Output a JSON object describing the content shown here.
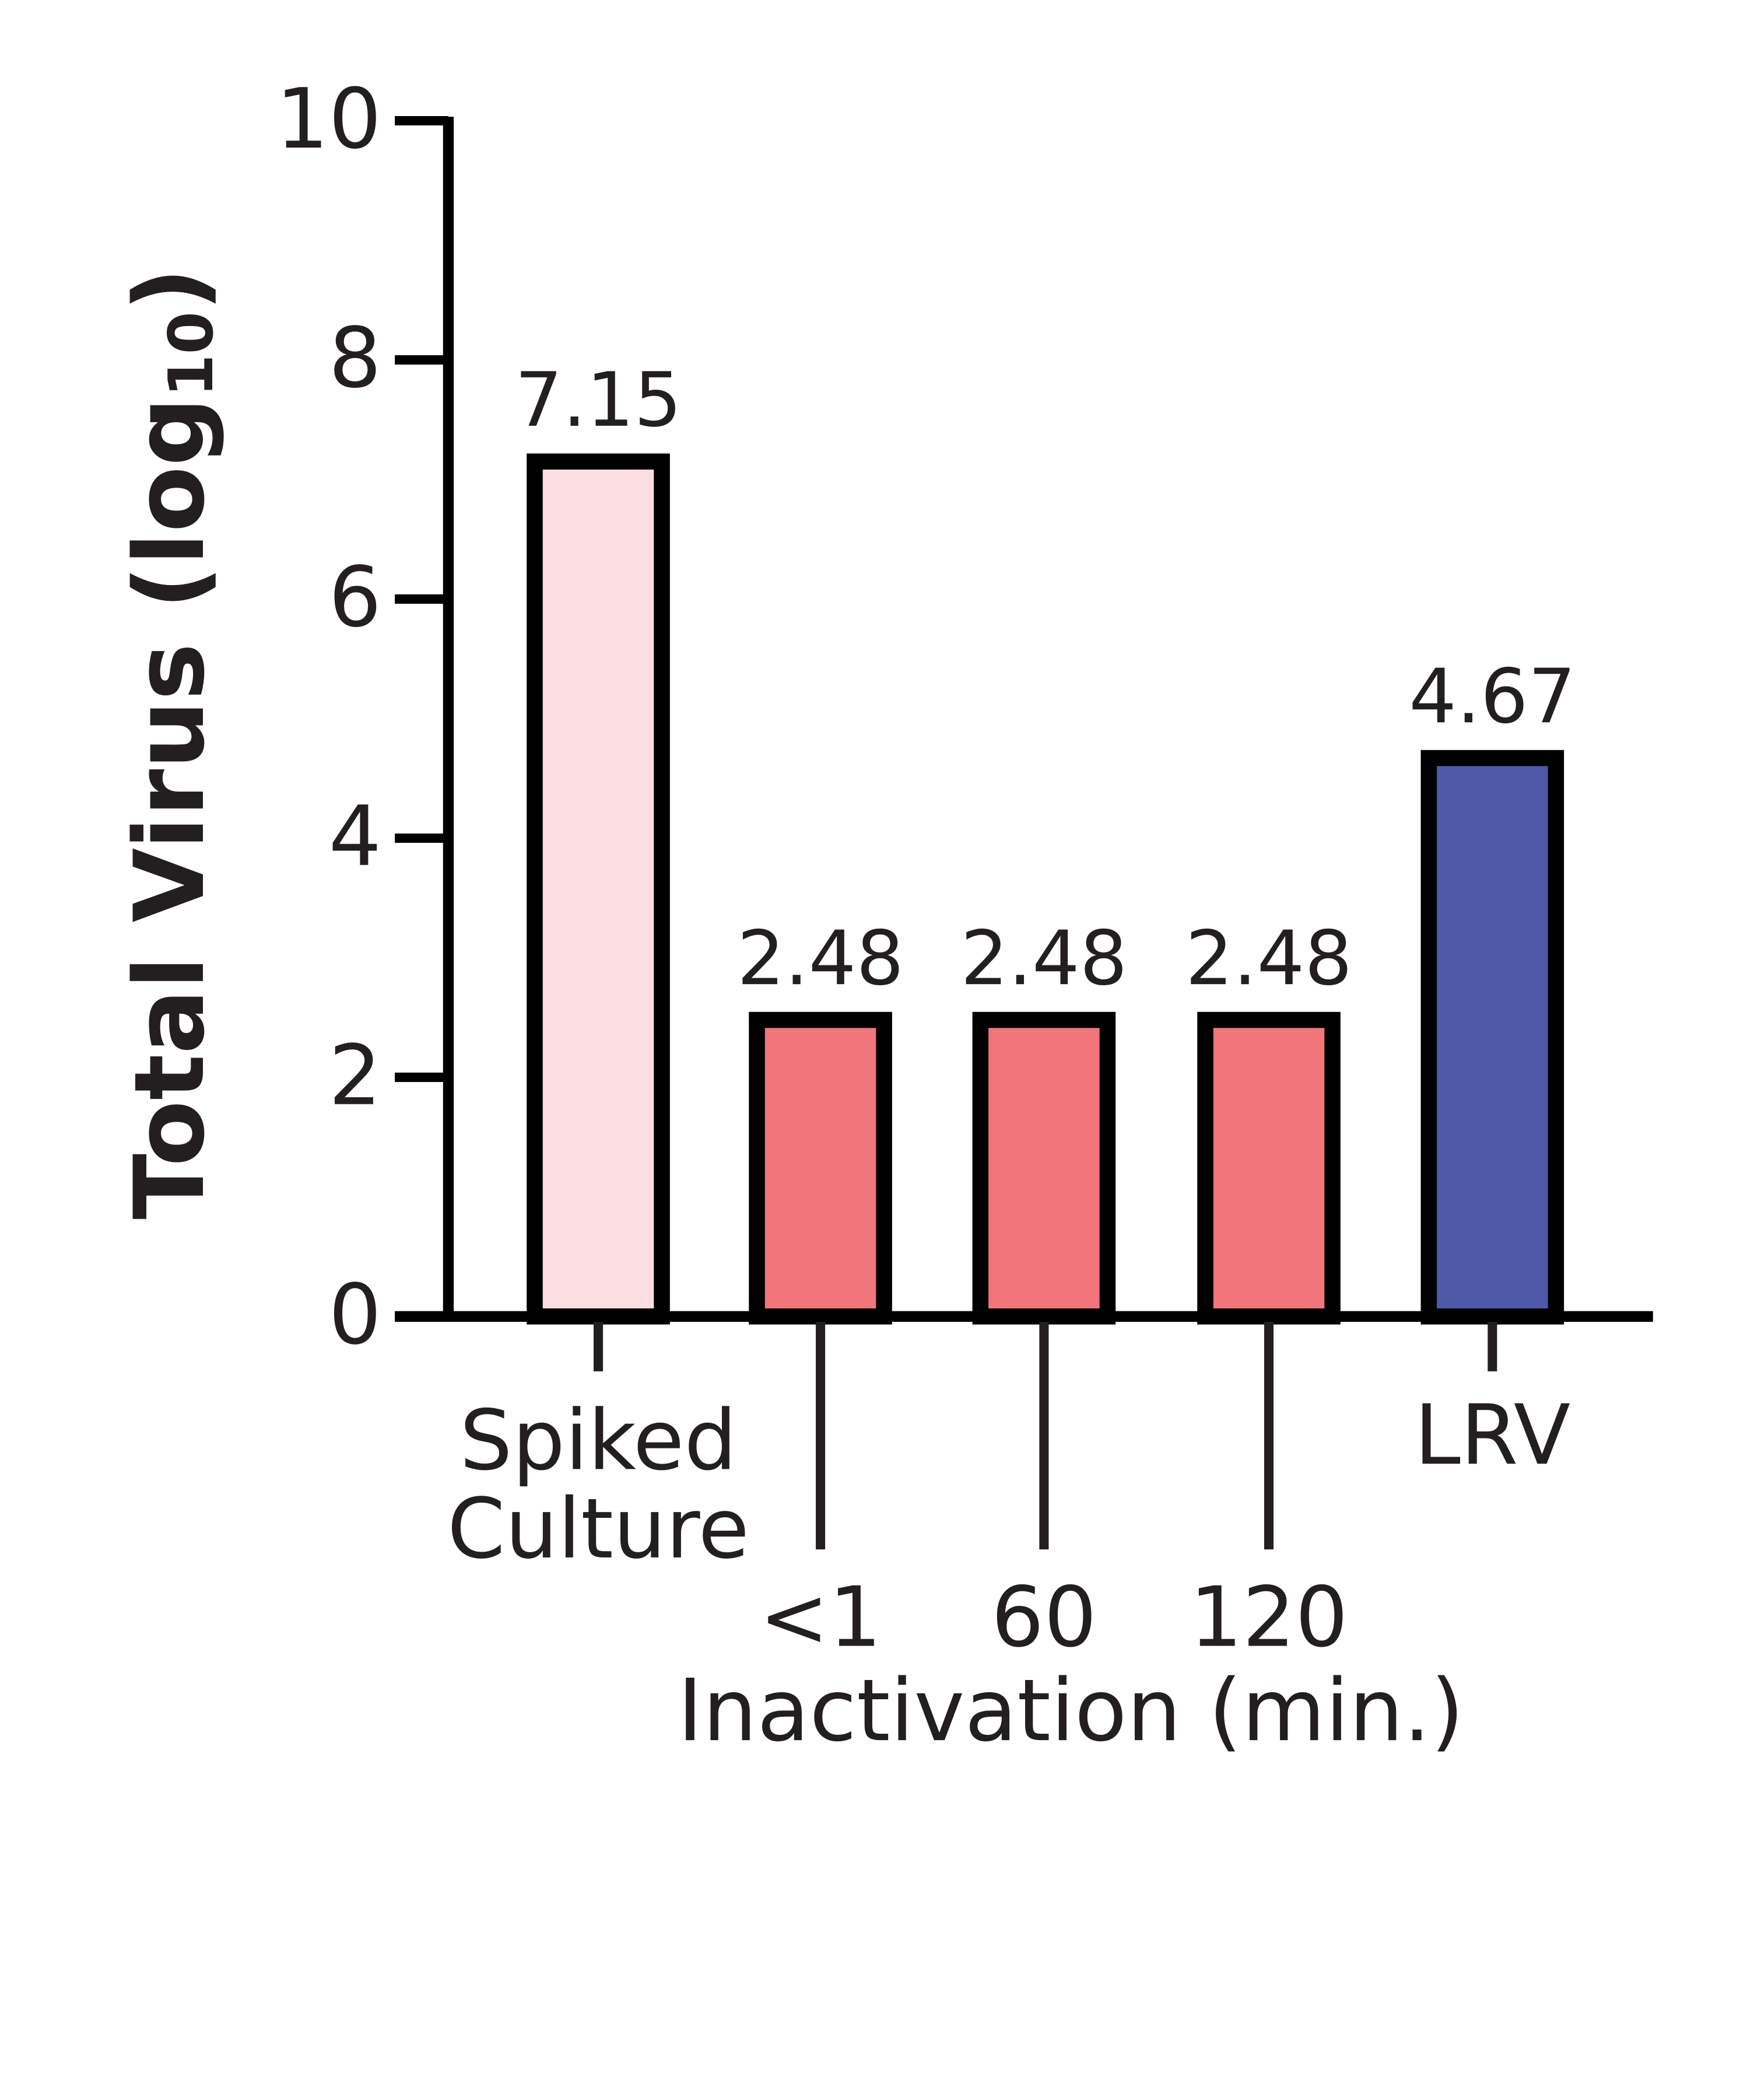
{
  "chart_data": {
    "type": "bar",
    "y_label": "Total Virus (log",
    "y_label_subscript": "10",
    "y_label_end": ")",
    "x_label": "Inactivation (min.)",
    "categories": [
      "Spiked Culture",
      "<1",
      "60",
      "120",
      "LRV"
    ],
    "values": [
      7.15,
      2.48,
      2.48,
      2.48,
      4.67
    ],
    "colors": [
      "#fcdde1",
      "#f0767c",
      "#f0767c",
      "#f0767c",
      "#4e5aa8"
    ],
    "ylim": [
      0,
      10
    ],
    "yticks": [
      0,
      2,
      4,
      6,
      8,
      10
    ]
  }
}
